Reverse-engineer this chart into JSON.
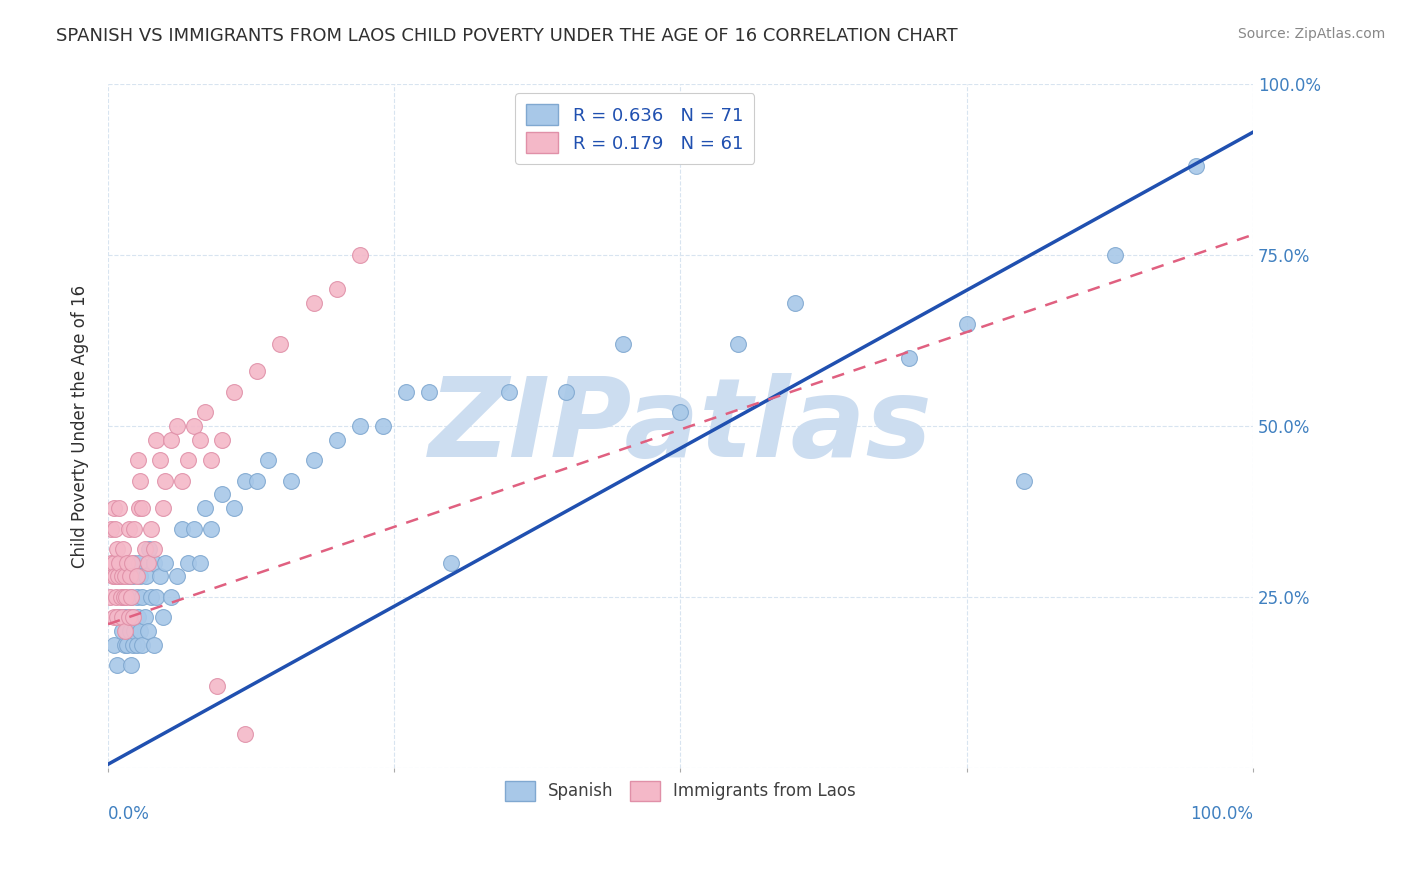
{
  "title": "SPANISH VS IMMIGRANTS FROM LAOS CHILD POVERTY UNDER THE AGE OF 16 CORRELATION CHART",
  "source": "Source: ZipAtlas.com",
  "ylabel": "Child Poverty Under the Age of 16",
  "xlim": [
    0,
    1.0
  ],
  "ylim": [
    0,
    1.0
  ],
  "xticks": [
    0.0,
    0.25,
    0.5,
    0.75,
    1.0
  ],
  "yticks": [
    0.0,
    0.25,
    0.5,
    0.75,
    1.0
  ],
  "x_edge_labels": [
    "0.0%",
    "100.0%"
  ],
  "right_yticklabels": [
    "",
    "25.0%",
    "50.0%",
    "75.0%",
    "100.0%"
  ],
  "spanish_R": 0.636,
  "spanish_N": 71,
  "laos_R": 0.179,
  "laos_N": 61,
  "spanish_color": "#a8c8e8",
  "laos_color": "#f4b8c8",
  "spanish_edge_color": "#80a8d0",
  "laos_edge_color": "#e090a8",
  "spanish_line_color": "#2050b0",
  "laos_line_color": "#e06080",
  "watermark": "ZIPatlas",
  "watermark_color": "#ccddf0",
  "grid_color": "#d8e4f0",
  "title_color": "#303030",
  "tick_color": "#4080c0",
  "legend_text_color": "#2050b0",
  "bottom_legend_color": "#404040",
  "spanish_line_x0": 0.0,
  "spanish_line_y0": 0.005,
  "spanish_line_x1": 1.0,
  "spanish_line_y1": 0.93,
  "laos_line_x0": 0.0,
  "laos_line_y0": 0.21,
  "laos_line_x1": 1.0,
  "laos_line_y1": 0.78,
  "spanish_scatter_x": [
    0.005,
    0.008,
    0.01,
    0.01,
    0.012,
    0.013,
    0.015,
    0.015,
    0.016,
    0.017,
    0.018,
    0.018,
    0.019,
    0.02,
    0.02,
    0.021,
    0.022,
    0.022,
    0.023,
    0.023,
    0.025,
    0.025,
    0.026,
    0.027,
    0.028,
    0.028,
    0.03,
    0.03,
    0.032,
    0.033,
    0.035,
    0.036,
    0.038,
    0.04,
    0.04,
    0.042,
    0.045,
    0.048,
    0.05,
    0.055,
    0.06,
    0.065,
    0.07,
    0.075,
    0.08,
    0.085,
    0.09,
    0.1,
    0.11,
    0.12,
    0.13,
    0.14,
    0.16,
    0.18,
    0.2,
    0.22,
    0.24,
    0.26,
    0.28,
    0.3,
    0.35,
    0.4,
    0.45,
    0.5,
    0.55,
    0.6,
    0.7,
    0.75,
    0.8,
    0.88,
    0.95
  ],
  "spanish_scatter_y": [
    0.18,
    0.15,
    0.22,
    0.28,
    0.2,
    0.25,
    0.18,
    0.22,
    0.2,
    0.18,
    0.22,
    0.28,
    0.2,
    0.15,
    0.25,
    0.22,
    0.18,
    0.28,
    0.2,
    0.3,
    0.18,
    0.25,
    0.22,
    0.3,
    0.2,
    0.28,
    0.18,
    0.25,
    0.22,
    0.28,
    0.2,
    0.32,
    0.25,
    0.18,
    0.3,
    0.25,
    0.28,
    0.22,
    0.3,
    0.25,
    0.28,
    0.35,
    0.3,
    0.35,
    0.3,
    0.38,
    0.35,
    0.4,
    0.38,
    0.42,
    0.42,
    0.45,
    0.42,
    0.45,
    0.48,
    0.5,
    0.5,
    0.55,
    0.55,
    0.3,
    0.55,
    0.55,
    0.62,
    0.52,
    0.62,
    0.68,
    0.6,
    0.65,
    0.42,
    0.75,
    0.88
  ],
  "laos_scatter_x": [
    0.002,
    0.003,
    0.003,
    0.004,
    0.005,
    0.005,
    0.005,
    0.006,
    0.006,
    0.007,
    0.008,
    0.008,
    0.009,
    0.01,
    0.01,
    0.011,
    0.012,
    0.012,
    0.013,
    0.014,
    0.015,
    0.015,
    0.016,
    0.017,
    0.018,
    0.018,
    0.019,
    0.02,
    0.021,
    0.022,
    0.023,
    0.025,
    0.026,
    0.027,
    0.028,
    0.03,
    0.032,
    0.035,
    0.038,
    0.04,
    0.042,
    0.045,
    0.048,
    0.05,
    0.055,
    0.06,
    0.065,
    0.07,
    0.075,
    0.08,
    0.085,
    0.09,
    0.095,
    0.1,
    0.11,
    0.12,
    0.13,
    0.15,
    0.18,
    0.2,
    0.22
  ],
  "laos_scatter_y": [
    0.25,
    0.3,
    0.35,
    0.28,
    0.22,
    0.3,
    0.38,
    0.28,
    0.35,
    0.25,
    0.22,
    0.32,
    0.28,
    0.3,
    0.38,
    0.25,
    0.22,
    0.28,
    0.32,
    0.25,
    0.2,
    0.28,
    0.25,
    0.3,
    0.22,
    0.35,
    0.28,
    0.25,
    0.3,
    0.22,
    0.35,
    0.28,
    0.45,
    0.38,
    0.42,
    0.38,
    0.32,
    0.3,
    0.35,
    0.32,
    0.48,
    0.45,
    0.38,
    0.42,
    0.48,
    0.5,
    0.42,
    0.45,
    0.5,
    0.48,
    0.52,
    0.45,
    0.12,
    0.48,
    0.55,
    0.05,
    0.58,
    0.62,
    0.68,
    0.7,
    0.75
  ]
}
